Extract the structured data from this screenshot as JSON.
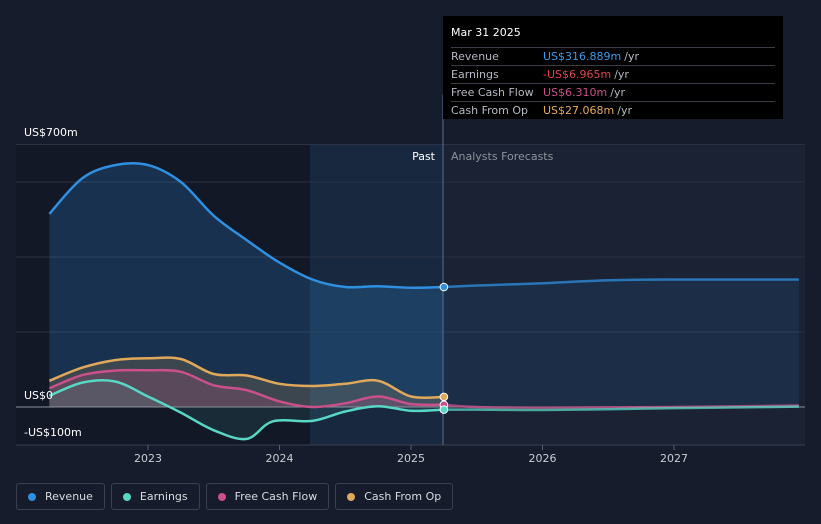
{
  "tooltip": {
    "date": "Mar 31 2025",
    "rows": [
      {
        "label": "Revenue",
        "value": "US$316.889m",
        "unit": "/yr",
        "color": "#3a9be6"
      },
      {
        "label": "Earnings",
        "value": "-US$6.965m",
        "unit": "/yr",
        "color": "#e0454f"
      },
      {
        "label": "Free Cash Flow",
        "value": "US$6.310m",
        "unit": "/yr",
        "color": "#c9508a"
      },
      {
        "label": "Cash From Op",
        "value": "US$27.068m",
        "unit": "/yr",
        "color": "#e6a95a"
      }
    ]
  },
  "section_labels": {
    "past": "Past",
    "forecast": "Analysts Forecasts"
  },
  "legend": [
    {
      "label": "Revenue",
      "color": "#2f8fe0"
    },
    {
      "label": "Earnings",
      "color": "#57d7c4"
    },
    {
      "label": "Free Cash Flow",
      "color": "#c9508a"
    },
    {
      "label": "Cash From Op",
      "color": "#e0a85a"
    }
  ],
  "chart_data": {
    "type": "line",
    "y_tick_labels": [
      "US$700m",
      "US$0",
      "-US$100m"
    ],
    "x_tick_labels": [
      "2023",
      "2024",
      "2025",
      "2026",
      "2027"
    ],
    "ylim": [
      -100,
      700
    ],
    "past_end": 2025.25,
    "series": [
      {
        "name": "Revenue",
        "color": "#2f8fe0",
        "x": [
          2022.25,
          2022.5,
          2022.75,
          2023.0,
          2023.25,
          2023.5,
          2023.75,
          2024.0,
          2024.25,
          2024.5,
          2024.75,
          2025.0,
          2025.25,
          2025.5,
          2025.75,
          2026.0,
          2026.5,
          2027.0,
          2027.5,
          2027.95
        ],
        "y": [
          515,
          610,
          645,
          645,
          600,
          510,
          445,
          385,
          340,
          320,
          322,
          318,
          320,
          324,
          327,
          330,
          338,
          340,
          340,
          340
        ],
        "forecast_from": 2025.25
      },
      {
        "name": "Earnings",
        "color": "#57d7c4",
        "x": [
          2022.25,
          2022.5,
          2022.75,
          2023.0,
          2023.25,
          2023.5,
          2023.75,
          2023.95,
          2024.25,
          2024.5,
          2024.75,
          2025.0,
          2025.25,
          2025.5,
          2026.0,
          2026.5,
          2027.0,
          2027.5,
          2027.95
        ],
        "y": [
          30,
          65,
          68,
          28,
          -15,
          -62,
          -85,
          -38,
          -37,
          -12,
          2,
          -10,
          -7,
          -7,
          -8,
          -6,
          -3,
          -1,
          1
        ],
        "forecast_from": 2025.25
      },
      {
        "name": "Free Cash Flow",
        "color": "#c9508a",
        "x": [
          2022.25,
          2022.5,
          2022.75,
          2023.0,
          2023.25,
          2023.5,
          2023.75,
          2024.0,
          2024.25,
          2024.5,
          2024.75,
          2025.0,
          2025.25,
          2025.5,
          2026.0,
          2026.5,
          2027.0,
          2027.5,
          2027.95
        ],
        "y": [
          50,
          85,
          97,
          98,
          94,
          58,
          45,
          15,
          0,
          10,
          28,
          8,
          6,
          0,
          -2,
          -1,
          0,
          2,
          4
        ],
        "forecast_from": 2025.25
      },
      {
        "name": "Cash From Op",
        "color": "#e0a85a",
        "x": [
          2022.25,
          2022.5,
          2022.75,
          2023.0,
          2023.25,
          2023.5,
          2023.75,
          2024.0,
          2024.25,
          2024.5,
          2024.75,
          2025.0,
          2025.25
        ],
        "y": [
          70,
          105,
          125,
          130,
          128,
          88,
          84,
          62,
          56,
          62,
          70,
          28,
          27
        ]
      }
    ]
  }
}
